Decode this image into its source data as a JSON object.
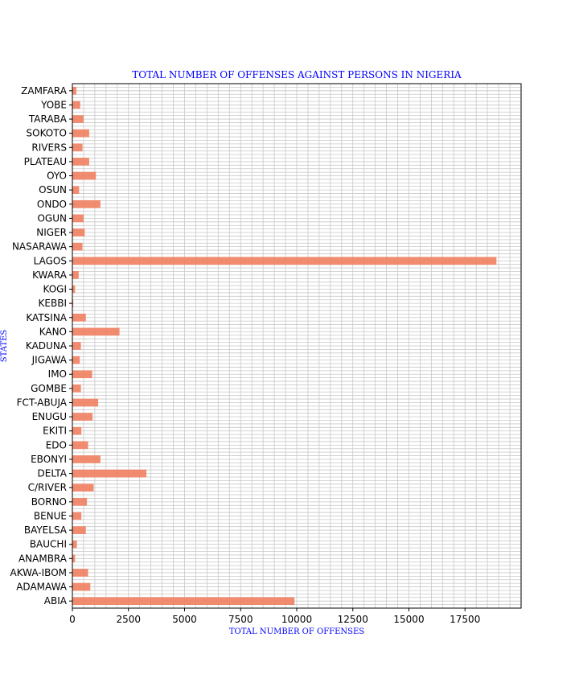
{
  "chart_data": {
    "type": "bar",
    "orientation": "horizontal",
    "title": "TOTAL NUMBER OF OFFENSES AGAINST PERSONS IN NIGERIA",
    "xlabel": "TOTAL NUMBER OF OFFENSES",
    "ylabel": "STATES",
    "xlim": [
      0,
      20000
    ],
    "xticks": [
      0,
      2500,
      5000,
      7500,
      10000,
      12500,
      15000,
      17500
    ],
    "xtick_labels": [
      "0",
      "2500",
      "5000",
      "7500",
      "10000",
      "12500",
      "15000",
      "17500"
    ],
    "grid": true,
    "bar_color": "#f08060",
    "categories": [
      "ABIA",
      "ADAMAWA",
      "AKWA-IBOM",
      "ANAMBRA",
      "BAUCHI",
      "BAYELSA",
      "BENUE",
      "BORNO",
      "C/RIVER",
      "DELTA",
      "EBONYI",
      "EDO",
      "EKITI",
      "ENUGU",
      "FCT-ABUJA",
      "GOMBE",
      "IMO",
      "JIGAWA",
      "KADUNA",
      "KANO",
      "KATSINA",
      "KEBBI",
      "KOGI",
      "KWARA",
      "LAGOS",
      "NASARAWA",
      "NIGER",
      "OGUN",
      "ONDO",
      "OSUN",
      "OYO",
      "PLATEAU",
      "RIVERS",
      "SOKOTO",
      "TARABA",
      "YOBE",
      "ZAMFARA"
    ],
    "values": [
      9900,
      800,
      700,
      120,
      200,
      600,
      400,
      650,
      950,
      3300,
      1250,
      700,
      400,
      900,
      1150,
      380,
      880,
      330,
      380,
      2100,
      600,
      40,
      120,
      280,
      18900,
      450,
      550,
      500,
      1250,
      300,
      1050,
      750,
      450,
      750,
      500,
      350,
      180
    ]
  }
}
